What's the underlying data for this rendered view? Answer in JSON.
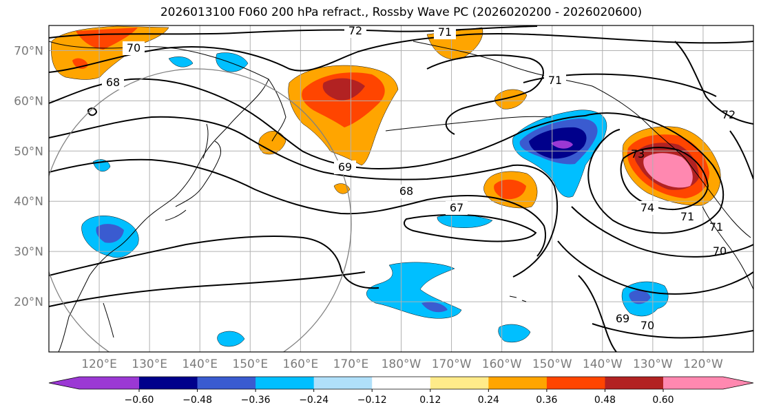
{
  "title": "2026013100 F060 200 hPa refract., Rossby Wave PC (2026020200 - 2026020600)",
  "map": {
    "lon_range_east": [
      110,
      250
    ],
    "lat_range": [
      10,
      75
    ],
    "lat_ticks": [
      "20°N",
      "30°N",
      "40°N",
      "50°N",
      "60°N",
      "70°N"
    ],
    "lon_ticks": [
      "120°E",
      "130°E",
      "140°E",
      "150°E",
      "160°E",
      "170°E",
      "180°W",
      "170°W",
      "160°W",
      "150°W",
      "140°W",
      "130°W",
      "120°W"
    ],
    "grid": true,
    "projection": "plate carree",
    "circle_center_lon_east": 140,
    "circle_center_lat": 40
  },
  "refractivity_contour_labels": [
    "72",
    "71",
    "70",
    "68",
    "71",
    "69",
    "68",
    "67",
    "73",
    "74",
    "71",
    "71",
    "70",
    "72",
    "69",
    "70"
  ],
  "colorbar": {
    "tick_labels": [
      "−0.60",
      "−0.48",
      "−0.36",
      "−0.24",
      "−0.12",
      "0.12",
      "0.24",
      "0.36",
      "0.48",
      "0.60"
    ],
    "colors": [
      "#9b38d4",
      "#00008b",
      "#3a5bd0",
      "#00bfff",
      "#b0e0fa",
      "#ffffff",
      "#ffeb8a",
      "#ffa500",
      "#ff4500",
      "#b22222",
      "#ff88b0"
    ],
    "extend": "both"
  },
  "colors": {
    "contour": "#000000",
    "grid": "#b0b0b0",
    "coast": "#000000",
    "circle": "#808080"
  }
}
